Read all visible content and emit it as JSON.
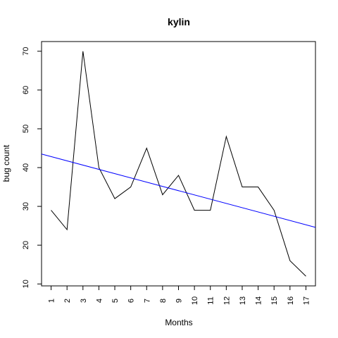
{
  "chart_data": {
    "type": "line",
    "title": "kylin",
    "xlabel": "Months",
    "ylabel": "bug count",
    "x": [
      1,
      2,
      3,
      4,
      5,
      6,
      7,
      8,
      9,
      10,
      11,
      12,
      13,
      14,
      15,
      16,
      17
    ],
    "xlim": [
      0.4,
      17.6
    ],
    "ylim": [
      9.5,
      72.5
    ],
    "yticks": [
      10,
      20,
      30,
      40,
      50,
      60,
      70
    ],
    "series": [
      {
        "color": "#000000",
        "values": [
          29,
          24,
          70,
          40,
          32,
          35,
          45,
          33,
          38,
          29,
          29,
          48,
          35,
          35,
          29,
          16,
          12
        ]
      }
    ],
    "trendline": {
      "color": "#0000ff",
      "x": [
        0.4,
        17.6
      ],
      "y": [
        43.5,
        24.6
      ]
    },
    "grid": false,
    "legend": "none"
  }
}
